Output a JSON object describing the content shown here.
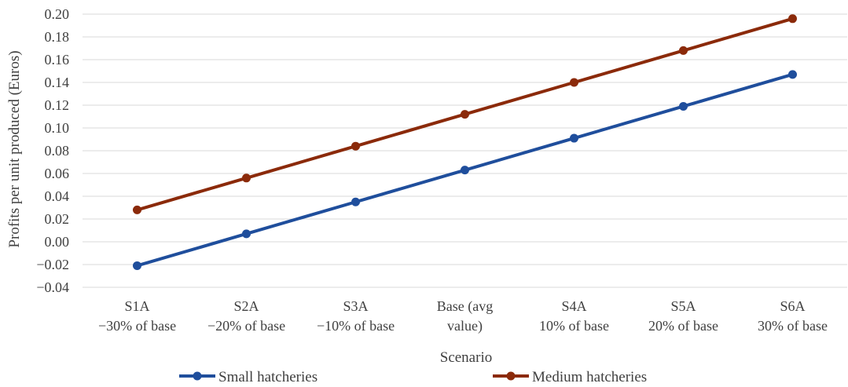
{
  "chart_data": {
    "type": "line",
    "title": "",
    "xlabel": "Scenario",
    "ylabel": "Profits per unit produced (Euros)",
    "categories": [
      [
        "S1A",
        "−30% of base"
      ],
      [
        "S2A",
        "−20% of base"
      ],
      [
        "S3A",
        "−10% of base"
      ],
      [
        "Base (avg",
        "value)"
      ],
      [
        "S4A",
        "10% of base"
      ],
      [
        "S5A",
        "20% of base"
      ],
      [
        "S6A",
        "30% of base"
      ]
    ],
    "y_tick_labels": [
      "−0.04",
      "−0.02",
      "0.00",
      "0.02",
      "0.04",
      "0.06",
      "0.08",
      "0.10",
      "0.12",
      "0.14",
      "0.16",
      "0.18",
      "0.20"
    ],
    "ylim": [
      -0.04,
      0.2
    ],
    "y_step": 0.02,
    "grid": true,
    "legend_position": "bottom",
    "series": [
      {
        "name": "Small hatcheries",
        "color": "#1f4e9c",
        "values": [
          -0.021,
          0.007,
          0.035,
          0.063,
          0.091,
          0.119,
          0.147
        ]
      },
      {
        "name": "Medium hatcheries",
        "color": "#8b2a0a",
        "values": [
          0.028,
          0.056,
          0.084,
          0.112,
          0.14,
          0.168,
          0.196
        ]
      }
    ]
  }
}
